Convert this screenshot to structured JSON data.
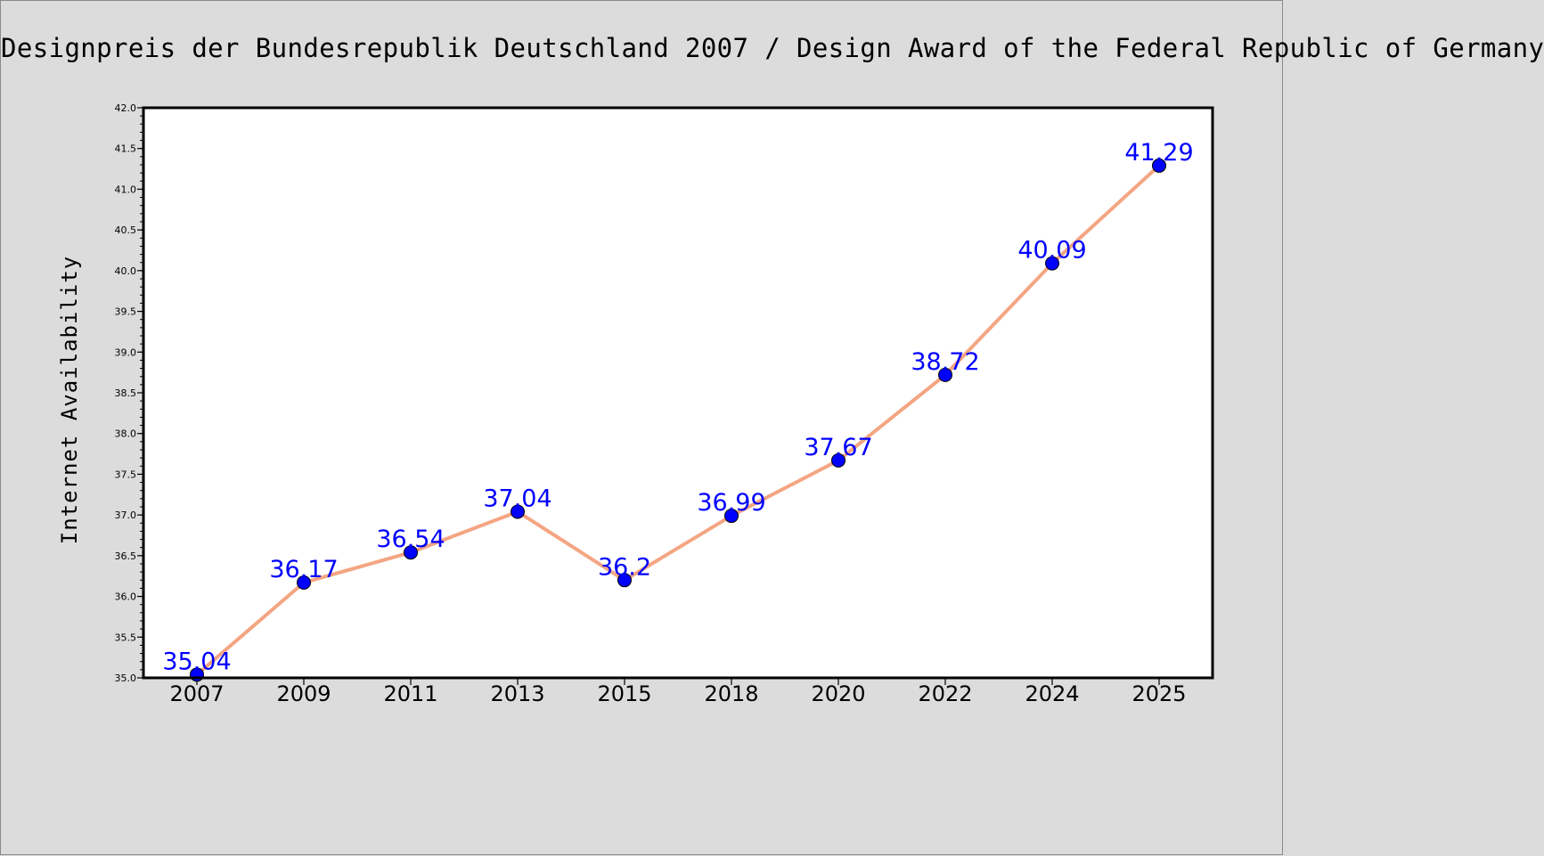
{
  "chart_data": {
    "type": "line",
    "title": "Designpreis der Bundesrepublik Deutschland 2007 / Design Award of the Federal Republic of Germany",
    "xlabel": "",
    "ylabel": "Internet Availability",
    "categories": [
      "2007",
      "2009",
      "2011",
      "2013",
      "2015",
      "2018",
      "2020",
      "2022",
      "2024",
      "2025"
    ],
    "series": [
      {
        "values": [
          35.04,
          36.17,
          36.54,
          37.04,
          36.2,
          36.99,
          37.67,
          38.72,
          40.09,
          41.29
        ],
        "labels": [
          "35.04",
          "36.17",
          "36.54",
          "37.04",
          "36.2",
          "36.99",
          "37.67",
          "38.72",
          "40.09",
          "41.29"
        ],
        "line_color": "#f4a582",
        "marker_color": "#0000ff"
      }
    ],
    "ylim": [
      35.0,
      42.0
    ],
    "yticks": [
      "35.0",
      "35.5",
      "36.0",
      "36.5",
      "37.0",
      "37.5",
      "38.0",
      "38.5",
      "39.0",
      "39.5",
      "40.0",
      "40.5",
      "41.0",
      "41.5",
      "42.0"
    ],
    "grid": false,
    "legend": "none"
  }
}
